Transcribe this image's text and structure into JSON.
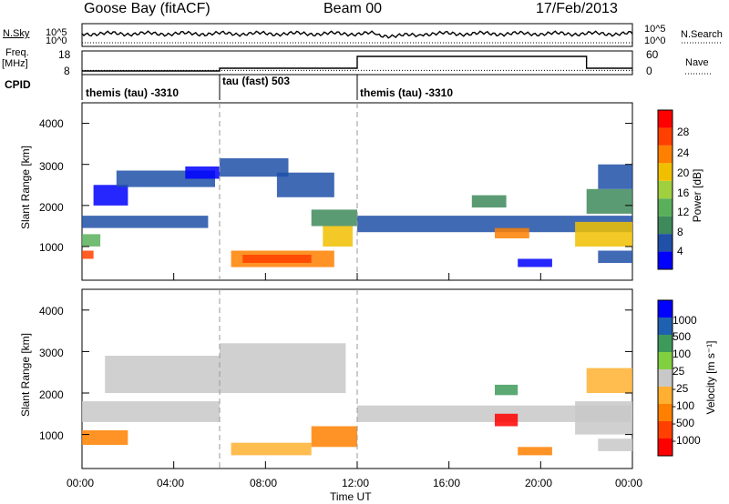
{
  "header": {
    "station": "Goose Bay (fitACF)",
    "beam": "Beam 00",
    "date": "17/Feb/2013"
  },
  "left_labels": {
    "nsky": "N.Sky",
    "freq_line1": "Freq.",
    "freq_line2": "[MHz]",
    "cpid": "CPID"
  },
  "right_labels": {
    "nsearch": "N.Search",
    "nave": "Nave"
  },
  "noise_panel": {
    "left_ticks": [
      "10^5",
      "10^0"
    ],
    "right_ticks": [
      "10^5",
      "10^0"
    ]
  },
  "freq_panel": {
    "left_ticks": [
      "18",
      "8"
    ],
    "right_ticks": [
      "60",
      "0"
    ]
  },
  "cpid_segments": [
    {
      "label": "themis (tau) -3310",
      "start_h": 0,
      "end_h": 6
    },
    {
      "label": "tau (fast) 503",
      "start_h": 6,
      "end_h": 12
    },
    {
      "label": "themis (tau) -3310",
      "start_h": 12,
      "end_h": 24
    }
  ],
  "colors": {
    "power_scale": [
      "#0000ff",
      "#2050a8",
      "#3e8a5a",
      "#5ab05a",
      "#a0d040",
      "#f0c000",
      "#ff8000",
      "#ff4000",
      "#ff0000"
    ],
    "velocity_scale": [
      "#ff0000",
      "#ff4000",
      "#ff8000",
      "#ffb030",
      "#c8c8c8",
      "#80d040",
      "#3e9a5a",
      "#2060b0",
      "#0000ff"
    ],
    "noise_line": "#000000"
  },
  "power_colorbar": {
    "label": "Power [dB]",
    "ticks": [
      "28",
      "24",
      "20",
      "16",
      "12",
      "8",
      "4"
    ]
  },
  "velocity_colorbar": {
    "label": "Velocity [m s⁻¹]",
    "ticks": [
      "1000",
      "500",
      "100",
      "25",
      "-25",
      "-100",
      "-500",
      "-1000"
    ]
  },
  "chart_data": [
    {
      "type": "heatmap",
      "title": "",
      "xlabel": "",
      "ylabel": "Slant Range [km]",
      "xlim": [
        0,
        24
      ],
      "ylim": [
        180,
        4500
      ],
      "yticks": [
        "4000",
        "3000",
        "2000",
        "1000"
      ],
      "colorbar": "Power [dB]",
      "data": [
        {
          "h0": 0.0,
          "h1": 0.5,
          "r0": 700,
          "r1": 900,
          "color": "#ff4000"
        },
        {
          "h0": 0.0,
          "h1": 0.8,
          "r0": 1000,
          "r1": 1300,
          "color": "#5ab05a"
        },
        {
          "h0": 0.0,
          "h1": 5.5,
          "r0": 1450,
          "r1": 1750,
          "color": "#2050a8"
        },
        {
          "h0": 0.5,
          "h1": 2.0,
          "r0": 2000,
          "r1": 2500,
          "color": "#0000ff"
        },
        {
          "h0": 1.5,
          "h1": 5.8,
          "r0": 2450,
          "r1": 2850,
          "color": "#2050a8"
        },
        {
          "h0": 4.5,
          "h1": 6.0,
          "r0": 2650,
          "r1": 2950,
          "color": "#0000ff"
        },
        {
          "h0": 6.0,
          "h1": 9.0,
          "r0": 2700,
          "r1": 3150,
          "color": "#2050a8"
        },
        {
          "h0": 8.5,
          "h1": 11.0,
          "r0": 2200,
          "r1": 2800,
          "color": "#2050a8"
        },
        {
          "h0": 6.5,
          "h1": 11.0,
          "r0": 500,
          "r1": 900,
          "color": "#ff8000"
        },
        {
          "h0": 7.0,
          "h1": 10.0,
          "r0": 600,
          "r1": 800,
          "color": "#ff4000"
        },
        {
          "h0": 10.5,
          "h1": 11.8,
          "r0": 1000,
          "r1": 1500,
          "color": "#f0c000"
        },
        {
          "h0": 10.0,
          "h1": 12.0,
          "r0": 1500,
          "r1": 1900,
          "color": "#3e8a5a"
        },
        {
          "h0": 12.0,
          "h1": 24.0,
          "r0": 1350,
          "r1": 1750,
          "color": "#2050a8"
        },
        {
          "h0": 17.0,
          "h1": 18.5,
          "r0": 1950,
          "r1": 2250,
          "color": "#3e8a5a"
        },
        {
          "h0": 18.0,
          "h1": 19.5,
          "r0": 1200,
          "r1": 1450,
          "color": "#ff8000"
        },
        {
          "h0": 19.0,
          "h1": 20.5,
          "r0": 500,
          "r1": 700,
          "color": "#0000ff"
        },
        {
          "h0": 21.5,
          "h1": 24.0,
          "r0": 1000,
          "r1": 1600,
          "color": "#f0c000"
        },
        {
          "h0": 22.0,
          "h1": 24.0,
          "r0": 1800,
          "r1": 2400,
          "color": "#3e8a5a"
        },
        {
          "h0": 22.5,
          "h1": 24.0,
          "r0": 600,
          "r1": 900,
          "color": "#2050a8"
        },
        {
          "h0": 22.5,
          "h1": 24.0,
          "r0": 2400,
          "r1": 3000,
          "color": "#2050a8"
        }
      ]
    },
    {
      "type": "heatmap",
      "title": "",
      "xlabel": "Time UT",
      "ylabel": "Slant Range [km]",
      "xlim": [
        0,
        24
      ],
      "ylim": [
        180,
        4500
      ],
      "xticks": [
        "00:00",
        "04:00",
        "08:00",
        "12:00",
        "16:00",
        "20:00",
        "00:00"
      ],
      "yticks": [
        "4000",
        "3000",
        "2000",
        "1000"
      ],
      "colorbar": "Velocity [m s⁻¹]",
      "data": [
        {
          "h0": 0.0,
          "h1": 2.0,
          "r0": 750,
          "r1": 1100,
          "color": "#ff8000"
        },
        {
          "h0": 0.0,
          "h1": 6.0,
          "r0": 1300,
          "r1": 1800,
          "color": "#c8c8c8"
        },
        {
          "h0": 1.0,
          "h1": 6.0,
          "r0": 2000,
          "r1": 2900,
          "color": "#c8c8c8"
        },
        {
          "h0": 6.0,
          "h1": 11.5,
          "r0": 2000,
          "r1": 3200,
          "color": "#c8c8c8"
        },
        {
          "h0": 6.5,
          "h1": 10.0,
          "r0": 500,
          "r1": 800,
          "color": "#ffb030"
        },
        {
          "h0": 10.0,
          "h1": 12.0,
          "r0": 700,
          "r1": 1200,
          "color": "#ff8000"
        },
        {
          "h0": 12.0,
          "h1": 24.0,
          "r0": 1300,
          "r1": 1700,
          "color": "#c8c8c8"
        },
        {
          "h0": 18.0,
          "h1": 19.0,
          "r0": 1200,
          "r1": 1500,
          "color": "#ff0000"
        },
        {
          "h0": 18.0,
          "h1": 19.0,
          "r0": 1950,
          "r1": 2200,
          "color": "#3e9a5a"
        },
        {
          "h0": 19.0,
          "h1": 20.5,
          "r0": 500,
          "r1": 700,
          "color": "#ff8000"
        },
        {
          "h0": 21.5,
          "h1": 24.0,
          "r0": 1000,
          "r1": 1800,
          "color": "#c8c8c8"
        },
        {
          "h0": 22.0,
          "h1": 24.0,
          "r0": 2000,
          "r1": 2600,
          "color": "#ffb030"
        },
        {
          "h0": 22.5,
          "h1": 24.0,
          "r0": 600,
          "r1": 900,
          "color": "#c8c8c8"
        }
      ]
    }
  ]
}
